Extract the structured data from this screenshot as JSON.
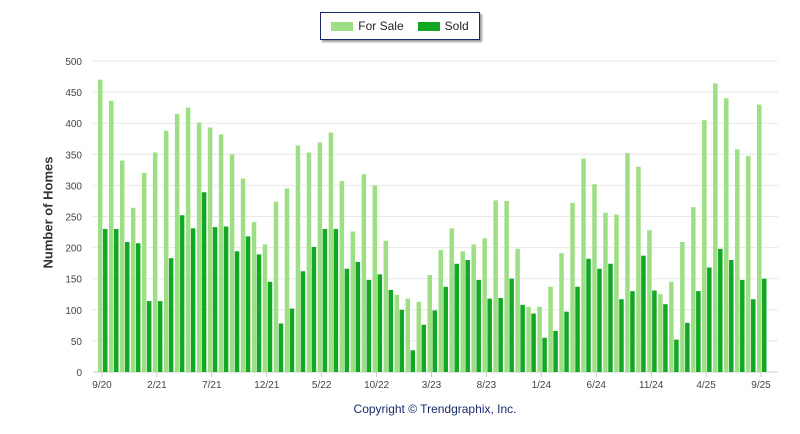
{
  "chart_data": {
    "type": "bar",
    "title": "",
    "xlabel": "",
    "ylabel": "Number of Homes",
    "ylim": [
      0,
      500
    ],
    "yticks": [
      0,
      50,
      100,
      150,
      200,
      250,
      300,
      350,
      400,
      450,
      500
    ],
    "grid": true,
    "legend_position": "top-center",
    "categories": [
      "9/20",
      "10/20",
      "11/20",
      "12/20",
      "1/21",
      "2/21",
      "3/21",
      "4/21",
      "5/21",
      "6/21",
      "7/21",
      "8/21",
      "9/21",
      "10/21",
      "11/21",
      "12/21",
      "1/22",
      "2/22",
      "3/22",
      "4/22",
      "5/22",
      "6/22",
      "7/22",
      "8/22",
      "9/22",
      "10/22",
      "11/22",
      "12/22",
      "1/23",
      "2/23",
      "3/23",
      "4/23",
      "5/23",
      "6/23",
      "7/23",
      "8/23",
      "9/23",
      "10/23",
      "11/23",
      "12/23",
      "1/24",
      "2/24",
      "3/24",
      "4/24",
      "5/24",
      "6/24",
      "7/24",
      "8/24",
      "9/24",
      "10/24",
      "11/24",
      "12/24",
      "1/25",
      "2/25",
      "3/25",
      "4/25",
      "5/25",
      "6/25",
      "7/25",
      "8/25",
      "9/25"
    ],
    "xtick_labels": [
      "9/20",
      "2/21",
      "7/21",
      "12/21",
      "5/22",
      "10/22",
      "3/23",
      "8/23",
      "1/24",
      "6/24",
      "11/24",
      "4/25",
      "9/25"
    ],
    "series": [
      {
        "name": "For Sale",
        "color": "#9edf86",
        "values": [
          470,
          436,
          340,
          264,
          320,
          353,
          388,
          415,
          425,
          401,
          393,
          382,
          350,
          311,
          241,
          205,
          274,
          295,
          364,
          353,
          369,
          385,
          307,
          226,
          318,
          300,
          211,
          124,
          118,
          113,
          156,
          196,
          231,
          194,
          205,
          215,
          276,
          275,
          198,
          105,
          105,
          137,
          191,
          272,
          343,
          302,
          256,
          253,
          352,
          330,
          228,
          125,
          145,
          209,
          265,
          405,
          464,
          440,
          358,
          347,
          430
        ]
      },
      {
        "name": "Sold",
        "color": "#12a826",
        "values": [
          230,
          230,
          209,
          207,
          114,
          114,
          183,
          252,
          231,
          289,
          233,
          234,
          194,
          218,
          189,
          145,
          78,
          102,
          162,
          201,
          230,
          230,
          166,
          177,
          148,
          157,
          132,
          100,
          35,
          76,
          99,
          137,
          174,
          180,
          148,
          118,
          119,
          150,
          108,
          94,
          55,
          66,
          97,
          137,
          182,
          166,
          174,
          117,
          130,
          187,
          131,
          109,
          52,
          79,
          130,
          168,
          198,
          180,
          148,
          117,
          150
        ]
      }
    ]
  },
  "copyright": "Copyright © Trendgraphix, Inc."
}
